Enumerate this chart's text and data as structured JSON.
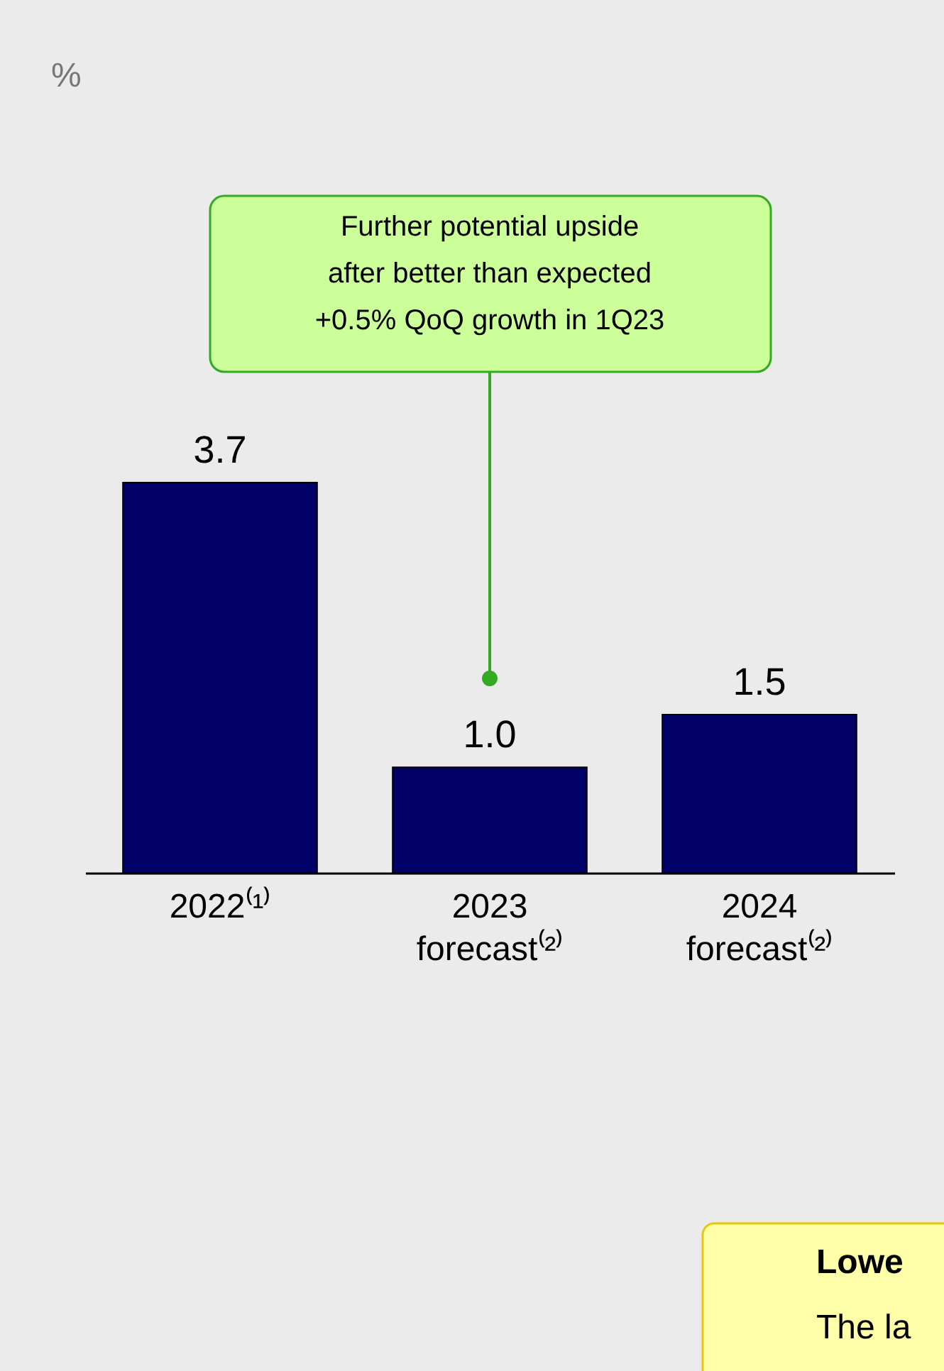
{
  "chart_data": {
    "type": "bar",
    "categories": [
      "2022⁽¹⁾",
      "2023 forecast⁽²⁾",
      "2024 forecast⁽²⁾"
    ],
    "values": [
      3.7,
      1.0,
      1.5
    ],
    "color": "#000066",
    "value_labels": [
      "3.7",
      "1.0",
      "1.5"
    ],
    "tick_labels": "x",
    "grid": false,
    "annotations": [
      "%",
      "Further potential upside\nafter better than expected\n+0.5% QoQ growth in 1Q23",
      "Lowe",
      "The la"
    ]
  }
}
